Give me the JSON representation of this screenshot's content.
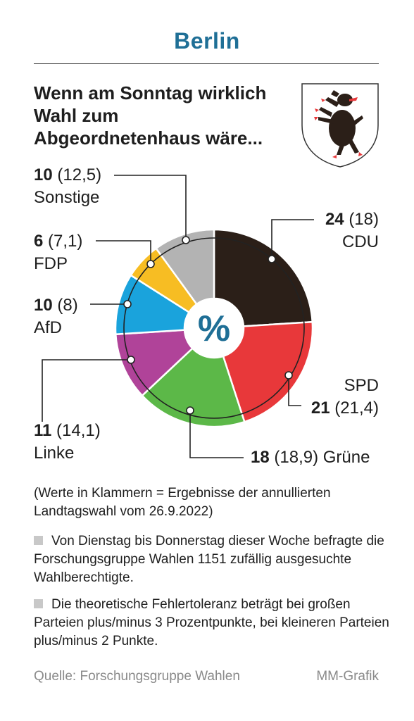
{
  "title": "Berlin",
  "headline": "Wenn am Sonntag wirklich Wahl zum Abgeordnetenhaus wäre...",
  "center_symbol": "%",
  "chart_data": {
    "type": "pie",
    "style": "donut",
    "unit": "%",
    "slices": [
      {
        "name": "CDU",
        "value": 24,
        "previous": "18",
        "color": "#2b1f18"
      },
      {
        "name": "SPD",
        "value": 21,
        "previous": "21,4",
        "color": "#e8383a"
      },
      {
        "name": "Grüne",
        "value": 18,
        "previous": "18,9",
        "color": "#5cb848"
      },
      {
        "name": "Linke",
        "value": 11,
        "previous": "14,1",
        "color": "#b04399"
      },
      {
        "name": "AfD",
        "value": 10,
        "previous": "8",
        "color": "#1aa3dc"
      },
      {
        "name": "FDP",
        "value": 6,
        "previous": "7,1",
        "color": "#f7bd23"
      },
      {
        "name": "Sonstige",
        "value": 10,
        "previous": "12,5",
        "color": "#b3b3b3"
      }
    ]
  },
  "labels": {
    "cdu": {
      "value": "24",
      "prev": "(18)",
      "name": "CDU"
    },
    "spd": {
      "value": "21",
      "prev": "(21,4)",
      "name": "SPD"
    },
    "gruene": {
      "value": "18",
      "prev": "(18,9)",
      "name": "Grüne"
    },
    "linke": {
      "value": "11",
      "prev": "(14,1)",
      "name": "Linke"
    },
    "afd": {
      "value": "10",
      "prev": "(8)",
      "name": "AfD"
    },
    "fdp": {
      "value": "6",
      "prev": "(7,1)",
      "name": "FDP"
    },
    "sonstige": {
      "value": "10",
      "prev": "(12,5)",
      "name": "Sonstige"
    }
  },
  "notes": {
    "parenthetical": "(Werte in Klammern = Ergebnisse der annullierten Landtagswahl vom 26.9.2022)",
    "survey": "Von Dienstag bis Donnerstag dieser Woche befragte die Forschungsgruppe Wahlen 1151 zufällig ausgesuchte Wahlberechtigte.",
    "tolerance": "Die theoretische Fehlertoleranz beträgt bei großen Parteien plus/minus 3 Prozentpunkte, bei kleineren Parteien plus/minus 2 Punkte."
  },
  "footer": {
    "source": "Quelle: Forschungsgruppe Wahlen",
    "credit": "MM-Grafik"
  },
  "crest": {
    "icon": "berlin-bear-crest-icon"
  }
}
